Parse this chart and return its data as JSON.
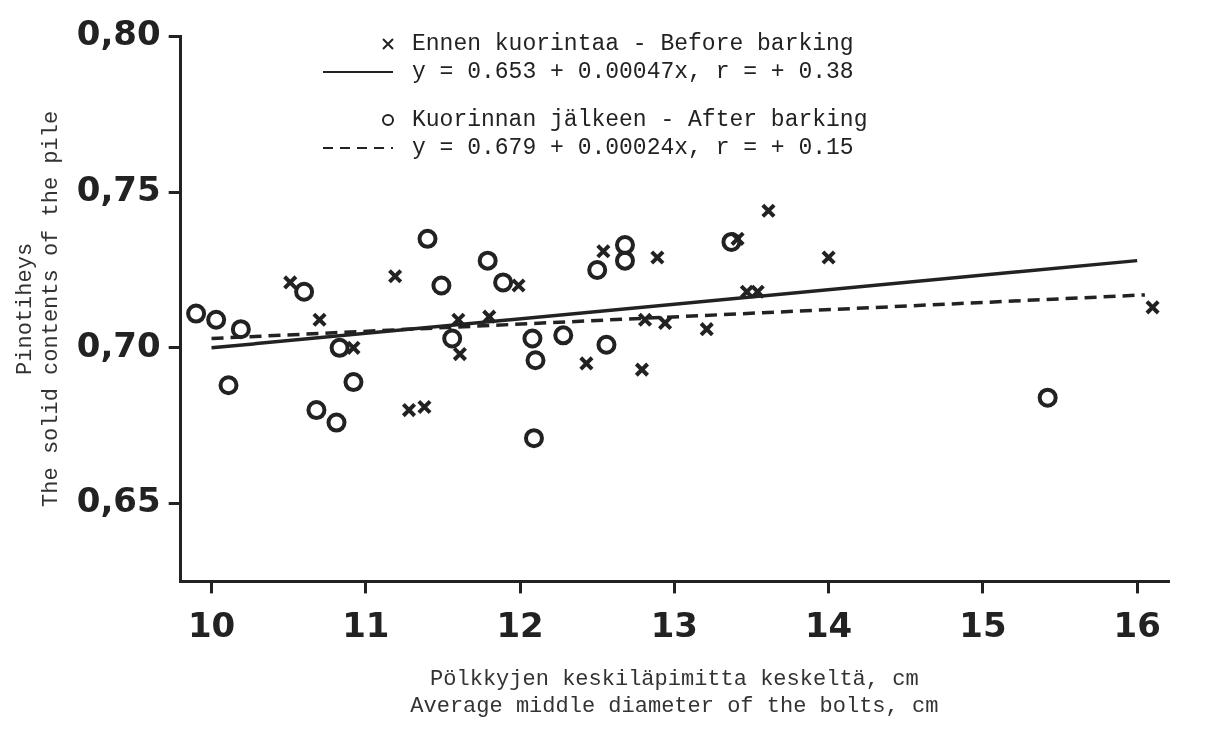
{
  "chart_data": {
    "type": "scatter",
    "xlabel": "Pölkkyjen keskiläpimitta keskeltä, cm\nAverage middle diameter of the bolts, cm",
    "ylabel": "Pinotiheys\nThe solid contents of the pile",
    "xlim": [
      9.8,
      16.2
    ],
    "xticks": [
      10,
      11,
      12,
      13,
      14,
      15,
      16
    ],
    "ylim": [
      0.625,
      0.8
    ],
    "yticks": [
      {
        "value": 0.65,
        "label": "0,65"
      },
      {
        "value": 0.7,
        "label": "0,70"
      },
      {
        "value": 0.75,
        "label": "0,75"
      },
      {
        "value": 0.8,
        "label": "0,80"
      }
    ],
    "grid": false,
    "legend": "top",
    "series": [
      {
        "type": "scatter",
        "name": "Ennen kuorintaa - Before barking",
        "color": "#222222",
        "marker": "cross",
        "x": [
          10.51,
          10.7,
          10.92,
          11.19,
          11.28,
          11.38,
          11.6,
          11.61,
          11.8,
          11.99,
          12.54,
          12.89,
          12.43,
          12.79,
          12.81,
          12.94,
          13.21,
          13.41,
          13.61,
          14.0,
          13.47,
          13.54,
          16.1
        ],
        "values": [
          0.721,
          0.709,
          0.7,
          0.723,
          0.68,
          0.681,
          0.709,
          0.698,
          0.71,
          0.72,
          0.731,
          0.729,
          0.695,
          0.693,
          0.709,
          0.708,
          0.706,
          0.735,
          0.744,
          0.729,
          0.718,
          0.718,
          0.713
        ]
      },
      {
        "type": "line",
        "name": "y = 0.653 + 0.00047x, r = + 0.38",
        "color": "#222222",
        "line_style": "solid",
        "x": [
          10,
          16
        ],
        "values": [
          0.7,
          0.728
        ]
      },
      {
        "type": "scatter",
        "name": "Kuorinnan jälkeen - After barking",
        "color": "#222222",
        "marker": "circle",
        "x": [
          9.9,
          10.03,
          10.19,
          10.11,
          10.6,
          10.83,
          10.92,
          10.68,
          10.81,
          11.4,
          11.49,
          11.79,
          11.89,
          11.56,
          12.08,
          12.1,
          12.09,
          12.28,
          12.56,
          12.5,
          12.68,
          12.68,
          13.37,
          15.42
        ],
        "values": [
          0.711,
          0.709,
          0.706,
          0.688,
          0.718,
          0.7,
          0.689,
          0.68,
          0.676,
          0.735,
          0.72,
          0.728,
          0.721,
          0.703,
          0.703,
          0.696,
          0.671,
          0.704,
          0.701,
          0.725,
          0.733,
          0.728,
          0.734,
          0.684
        ]
      },
      {
        "type": "line",
        "name": "y = 0.679 + 0.00024x, r = + 0.15",
        "color": "#222222",
        "line_style": "dashed",
        "x": [
          10,
          16.05
        ],
        "values": [
          0.703,
          0.717
        ]
      }
    ]
  }
}
